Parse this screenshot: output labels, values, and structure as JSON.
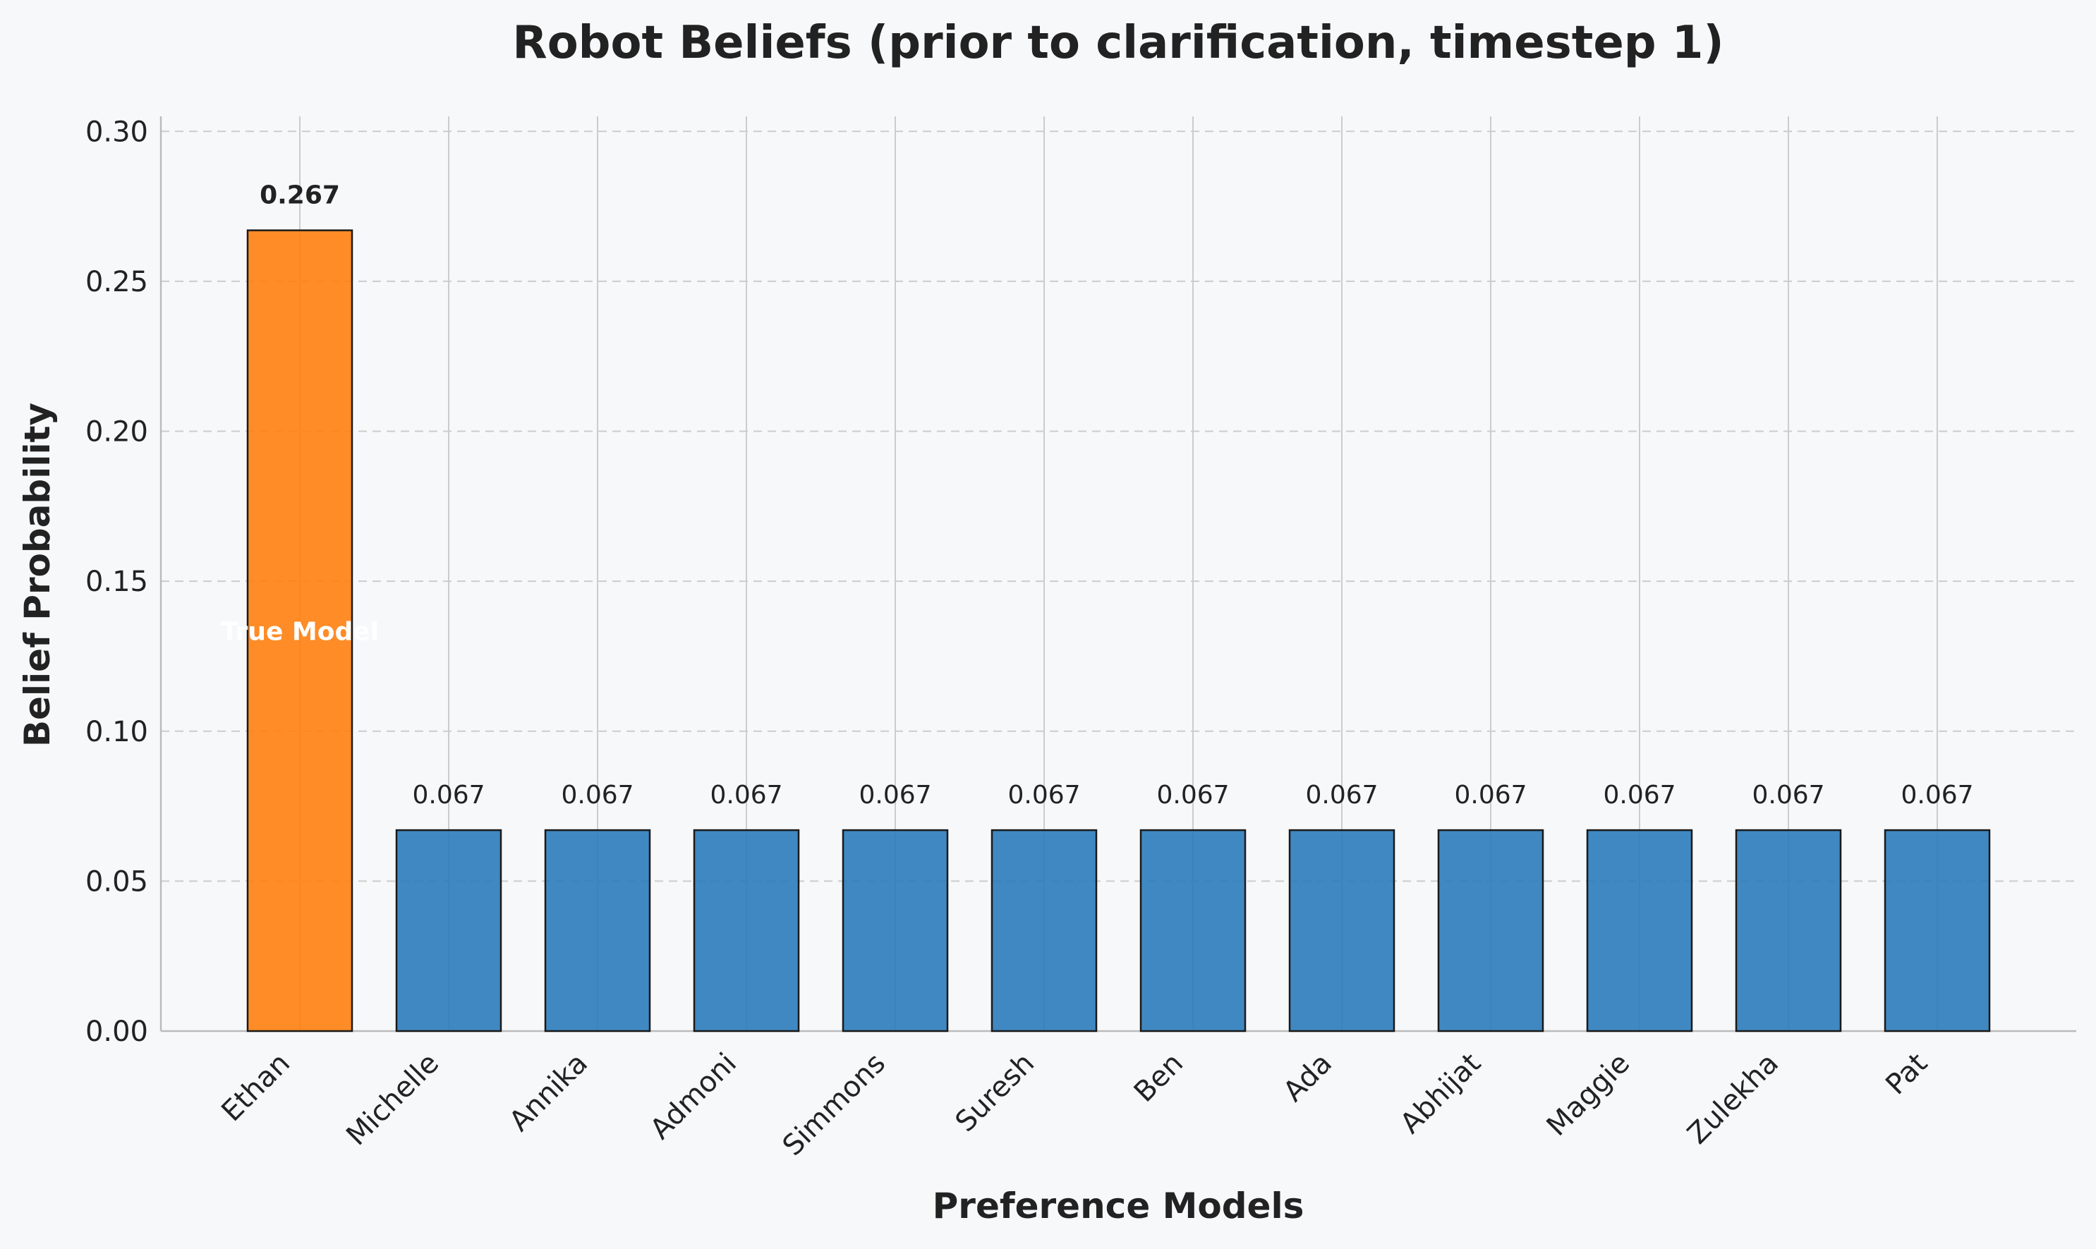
{
  "chart_data": {
    "type": "bar",
    "title": "Robot Beliefs (prior to clarification, timestep 1)",
    "xlabel": "Preference Models",
    "ylabel": "Belief Probability",
    "categories": [
      "Ethan",
      "Michelle",
      "Annika",
      "Admoni",
      "Simmons",
      "Suresh",
      "Ben",
      "Ada",
      "Abhijat",
      "Maggie",
      "Zulekha",
      "Pat"
    ],
    "values": [
      0.267,
      0.067,
      0.067,
      0.067,
      0.067,
      0.067,
      0.067,
      0.067,
      0.067,
      0.067,
      0.067,
      0.067
    ],
    "value_labels": [
      "0.267",
      "0.067",
      "0.067",
      "0.067",
      "0.067",
      "0.067",
      "0.067",
      "0.067",
      "0.067",
      "0.067",
      "0.067",
      "0.067"
    ],
    "highlight_index": 0,
    "highlight_annotation": "True Model",
    "ylim": [
      0,
      0.305
    ],
    "yticks": [
      0.0,
      0.05,
      0.1,
      0.15,
      0.2,
      0.25,
      0.3
    ],
    "ytick_labels": [
      "0.00",
      "0.05",
      "0.10",
      "0.15",
      "0.20",
      "0.25",
      "0.30"
    ],
    "grid": true,
    "colors": {
      "bar": "#2b7bba",
      "highlight": "#ff7f0e",
      "edge": "#1a1a1a",
      "grid": "#cccccc",
      "background": "#f7f8fa"
    }
  }
}
